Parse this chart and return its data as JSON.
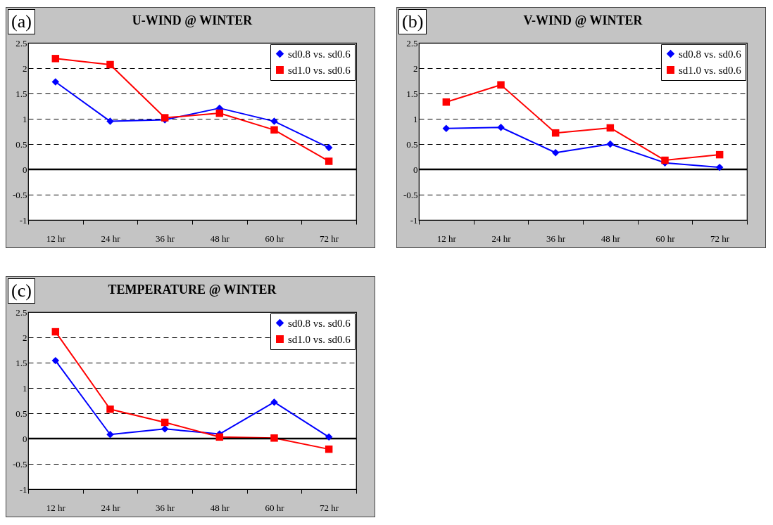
{
  "chart_data": [
    {
      "type": "line",
      "title": "U-WIND @ WINTER",
      "annotations": [
        "(a)"
      ],
      "categories": [
        "12 hr",
        "24 hr",
        "36 hr",
        "48 hr",
        "60 hr",
        "72 hr"
      ],
      "series": [
        {
          "name": "sd0.8 vs. sd0.6",
          "color": "#0000ff",
          "marker": "diamond",
          "values": [
            1.73,
            0.95,
            0.98,
            1.21,
            0.95,
            0.43
          ]
        },
        {
          "name": "sd1.0 vs. sd0.6",
          "color": "#ff0000",
          "marker": "square",
          "values": [
            2.19,
            2.07,
            1.02,
            1.11,
            0.78,
            0.16
          ]
        }
      ],
      "ylim": [
        -1,
        2.5
      ],
      "yticks": [
        -1,
        -0.5,
        0,
        0.5,
        1,
        1.5,
        2,
        2.5
      ],
      "grid": "y",
      "legend": "top right",
      "ref_lines": [
        {
          "axis": "y",
          "value": 0,
          "color": "#000000"
        }
      ]
    },
    {
      "type": "line",
      "title": "V-WIND @ WINTER",
      "annotations": [
        "(b)"
      ],
      "categories": [
        "12 hr",
        "24 hr",
        "36 hr",
        "48 hr",
        "60 hr",
        "72 hr"
      ],
      "series": [
        {
          "name": "sd0.8 vs. sd0.6",
          "color": "#0000ff",
          "marker": "diamond",
          "values": [
            0.81,
            0.83,
            0.33,
            0.5,
            0.13,
            0.04
          ]
        },
        {
          "name": "sd1.0 vs. sd0.6",
          "color": "#ff0000",
          "marker": "square",
          "values": [
            1.33,
            1.67,
            0.72,
            0.82,
            0.18,
            0.29
          ]
        }
      ],
      "ylim": [
        -1,
        2.5
      ],
      "yticks": [
        -1,
        -0.5,
        0,
        0.5,
        1,
        1.5,
        2,
        2.5
      ],
      "grid": "y",
      "legend": "top right",
      "ref_lines": [
        {
          "axis": "y",
          "value": 0,
          "color": "#000000"
        }
      ]
    },
    {
      "type": "line",
      "title": "TEMPERATURE @ WINTER",
      "annotations": [
        "(c)"
      ],
      "categories": [
        "12 hr",
        "24 hr",
        "36 hr",
        "48 hr",
        "60 hr",
        "72 hr"
      ],
      "series": [
        {
          "name": "sd0.8 vs. sd0.6",
          "color": "#0000ff",
          "marker": "diamond",
          "values": [
            1.54,
            0.08,
            0.19,
            0.09,
            0.72,
            0.03
          ]
        },
        {
          "name": "sd1.0 vs. sd0.6",
          "color": "#ff0000",
          "marker": "square",
          "values": [
            2.11,
            0.58,
            0.32,
            0.03,
            0.01,
            -0.21
          ]
        }
      ],
      "ylim": [
        -1,
        2.5
      ],
      "yticks": [
        -1,
        -0.5,
        0,
        0.5,
        1,
        1.5,
        2,
        2.5
      ],
      "grid": "y",
      "legend": "top right",
      "ref_lines": [
        {
          "axis": "y",
          "value": 0,
          "color": "#000000"
        }
      ]
    }
  ]
}
